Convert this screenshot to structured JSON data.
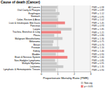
{
  "chart_data": {
    "type": "bar",
    "orientation": "horizontal",
    "title": "Cause of death (Cancer)",
    "x_label": "Proportionate Mortality Ratio (PMR)",
    "categories": [
      "All Cancers",
      "Oral Cavity & Pharynx",
      "Esophagus",
      "Stomach",
      "Colon, Rectum & Anus",
      "Liver & Intrahepatic Bile Ducts",
      "Pancreas",
      "Larynx",
      "Trachea, Bronchus & Lung",
      "Pleura",
      "Malignant Mesothelioma",
      "Melanoma",
      "Breast",
      "Prostate",
      "Kidney",
      "Bladder",
      "Brain & Nervous System",
      "Non-Hodgkin Lymphoma",
      "Multiple Myeloma",
      "Leukemia",
      "Lymphatic & Hematopoietic Tissues"
    ],
    "series": [
      {
        "name": "Non-sig",
        "color": "#c8c8c8",
        "values": [
          0.98,
          0.89,
          1.12,
          0.95,
          1.02,
          null,
          0.93,
          1.85,
          null,
          0.8,
          1.3,
          0.75,
          0.7,
          1.1,
          null,
          0.9,
          null,
          0.85,
          0.95,
          1.35,
          0.9
        ],
        "value_labels": [
          "PMR = 0.98",
          "PMR = 0.89",
          "PMR = 1.12",
          "PMR = 0.95",
          "PMR = 1.02",
          null,
          "PMR = 0.93",
          "PMR = 1.85",
          null,
          "PMR = 0.80",
          "PMR = 1.30",
          "PMR = 0.75",
          "PMR = 0.70",
          "PMR = 1.10",
          null,
          "PMR = 0.90",
          null,
          "PMR = 0.85",
          "PMR = 0.95",
          "PMR = 1.35",
          "PMR = 0.90"
        ]
      },
      {
        "name": "p < 0.05",
        "color": "#f08080",
        "values": [
          null,
          null,
          null,
          null,
          null,
          1.45,
          null,
          null,
          1.21,
          null,
          null,
          null,
          null,
          null,
          1.4,
          null,
          1.6,
          null,
          null,
          null,
          null
        ],
        "value_labels": [
          null,
          null,
          null,
          null,
          null,
          "PMR = 1.45",
          null,
          null,
          "PMR = 1.21",
          null,
          null,
          null,
          null,
          null,
          "PMR = 1.40",
          null,
          "PMR = 1.60",
          null,
          null,
          null,
          null
        ]
      }
    ],
    "xlim": [
      0,
      3
    ],
    "xticks": [
      0,
      1,
      2,
      3
    ],
    "grid": true,
    "data_labels": true,
    "legend": "lower right"
  }
}
